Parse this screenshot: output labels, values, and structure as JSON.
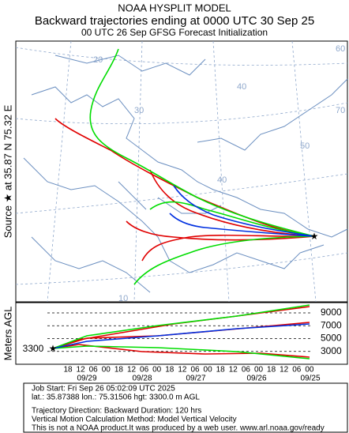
{
  "header": {
    "line1": "NOAA HYSPLIT MODEL",
    "line2": "Backward trajectories ending at 0000 UTC 30 Sep 25",
    "line3": "00 UTC 26 Sep    GFSG  Forecast Initialization"
  },
  "map": {
    "side_label": "Source ★ at   35.87 N   75.32 E",
    "grid_labels": [
      "20",
      "30",
      "40",
      "50",
      "10",
      "40",
      "60",
      "70"
    ]
  },
  "height_panel": {
    "axis_label": "Meters AGL",
    "start_label": "3300",
    "ylim": [
      1000,
      10600
    ],
    "yticks": [
      3000,
      5000,
      7000,
      9000
    ],
    "hour_labels": [
      "18",
      "12",
      "06",
      "00",
      "18",
      "12",
      "06",
      "00",
      "18",
      "12",
      "06",
      "00",
      "18",
      "12",
      "06",
      "00",
      "18",
      "12",
      "06",
      "00"
    ],
    "date_labels": [
      "09/29",
      "09/28",
      "09/27",
      "09/26",
      "09/25"
    ]
  },
  "footer": {
    "lines": [
      "Job Start: Fri Sep 26 05:02:09 UTC 2025",
      "lat.: 35.87388   lon.: 75.31506   hgt: 3300.0 m AGL",
      "Trajectory Direction: Backward        Duration: 120 hrs",
      "Vertical Motion Calculation Method: Model Vertical Velocity",
      "This is not a NOAA product.It was produced by a web user. www.arl.noaa.gov/ready"
    ]
  }
}
